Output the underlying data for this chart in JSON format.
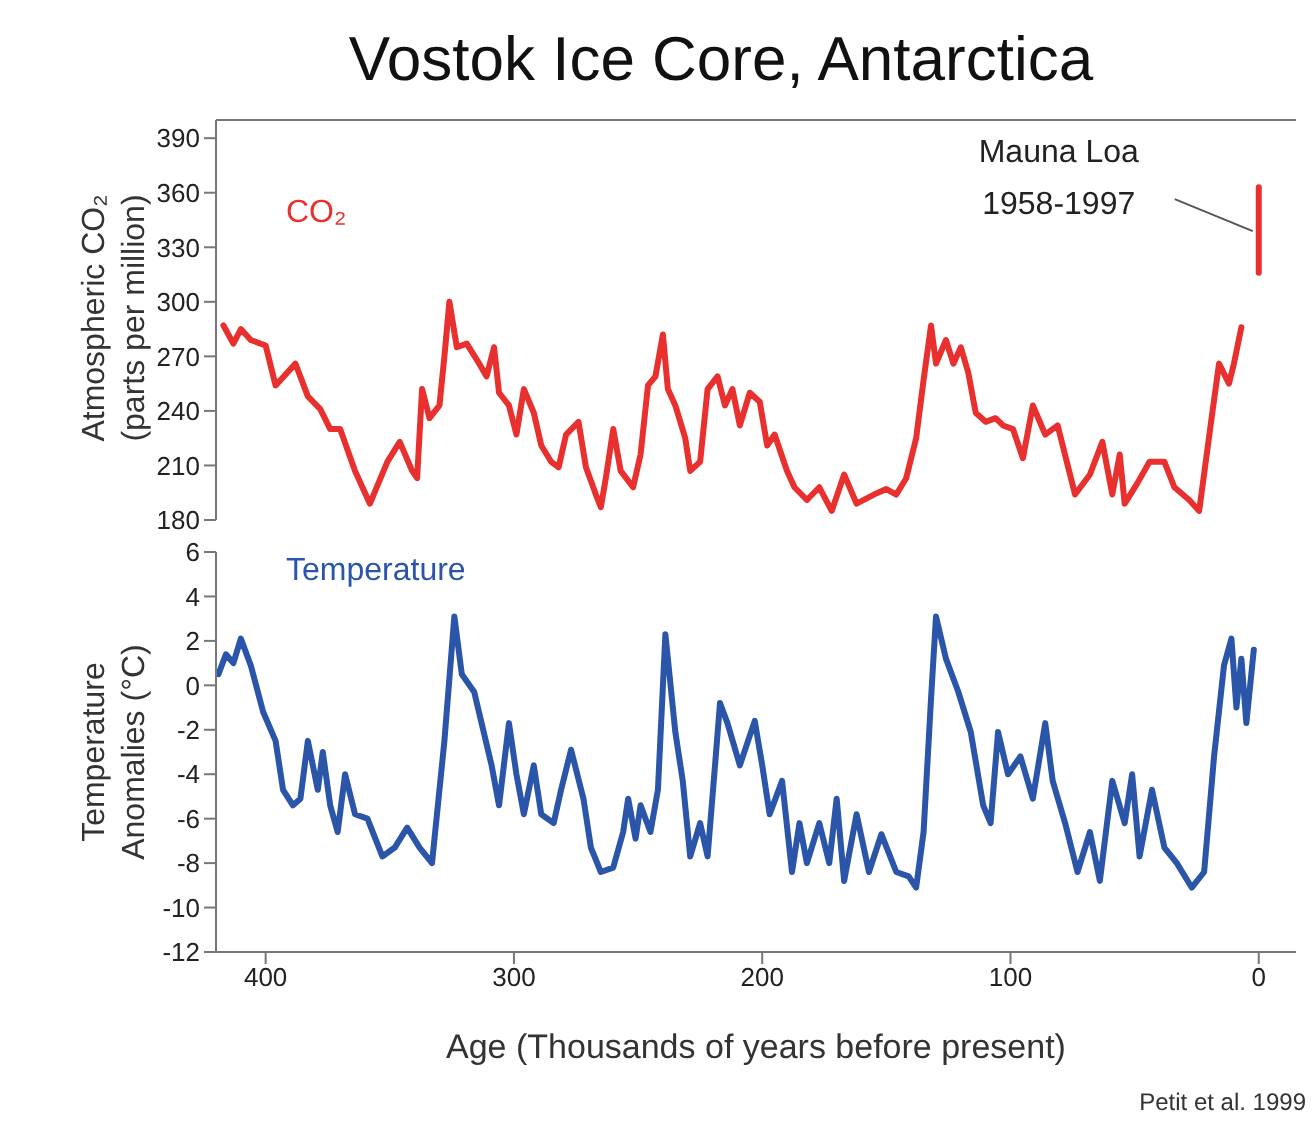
{
  "chart_data": [
    {
      "type": "line",
      "title": "Vostok Ice Core, Antarctica",
      "ylabel": "Atmospheric CO₂ (parts per million)",
      "tick_labels": "y",
      "xlim": [
        420,
        -15
      ],
      "ylim": [
        180,
        400
      ],
      "yticks": [
        180,
        210,
        240,
        270,
        300,
        330,
        360,
        390
      ],
      "series": [
        {
          "name": "CO₂",
          "color": "#e8312f",
          "x": [
            417,
            413,
            410,
            406,
            400,
            396,
            388,
            383,
            378,
            374,
            370,
            364,
            358,
            351,
            346,
            341,
            339,
            337,
            334,
            330,
            328,
            326,
            323,
            319,
            314,
            311,
            308,
            306,
            302,
            299,
            296,
            292,
            289,
            285,
            282,
            279,
            274,
            271,
            267,
            265,
            263,
            260,
            257,
            252,
            249,
            246,
            243,
            240,
            238,
            235,
            231,
            229,
            225,
            222,
            218,
            215,
            212,
            209,
            205,
            201,
            198,
            195,
            190,
            187,
            182,
            177,
            172,
            167,
            162,
            155,
            150,
            146,
            142,
            138,
            135,
            132,
            130,
            126,
            123,
            120,
            117,
            114,
            110,
            106,
            103,
            99,
            95,
            91,
            86,
            81,
            74,
            68,
            63,
            59,
            56,
            54,
            49,
            44,
            38,
            34,
            28,
            24,
            19,
            16,
            12,
            10,
            7
          ],
          "values": [
            287,
            277,
            285,
            279,
            276,
            254,
            266,
            248,
            241,
            230,
            230,
            207,
            189,
            212,
            223,
            207,
            203,
            252,
            236,
            243,
            270,
            300,
            275,
            277,
            266,
            259,
            275,
            250,
            243,
            227,
            252,
            239,
            221,
            212,
            209,
            227,
            234,
            209,
            194,
            187,
            203,
            230,
            207,
            198,
            216,
            254,
            259,
            282,
            252,
            243,
            225,
            207,
            212,
            252,
            259,
            243,
            252,
            232,
            250,
            245,
            221,
            227,
            207,
            198,
            191,
            198,
            185,
            205,
            189,
            194,
            197,
            194,
            203,
            225,
            257,
            287,
            266,
            279,
            266,
            275,
            261,
            239,
            234,
            236,
            232,
            230,
            214,
            243,
            227,
            232,
            194,
            205,
            223,
            194,
            216,
            189,
            200,
            212,
            212,
            198,
            191,
            185,
            236,
            266,
            255,
            266,
            286
          ]
        },
        {
          "color": "#e8312f",
          "x": [
            0,
            0
          ],
          "values": [
            316,
            363
          ]
        }
      ],
      "annotations": [
        {
          "text": "Mauna Loa 1958-1997",
          "x": 0,
          "y": 340
        }
      ]
    },
    {
      "type": "line",
      "xlabel": "Age (Thousands of years before present)",
      "ylabel": "Temperature Anomalies (°C)",
      "xlim": [
        420,
        -15
      ],
      "xticks": [
        400,
        300,
        200,
        100,
        0
      ],
      "ylim": [
        -12,
        6
      ],
      "yticks": [
        -12,
        -10,
        -8,
        -6,
        -4,
        -2,
        0,
        2,
        4,
        6
      ],
      "series": [
        {
          "name": "Temperature",
          "color": "#2a55a8",
          "x": [
            419,
            416,
            413,
            410,
            406,
            401,
            396,
            393,
            389,
            386,
            383,
            379,
            377,
            374,
            371,
            368,
            364,
            359,
            353,
            348,
            343,
            338,
            333,
            328,
            324,
            321,
            316,
            309,
            306,
            302,
            299,
            296,
            292,
            289,
            284,
            281,
            277,
            272,
            269,
            265,
            260,
            256,
            254,
            251,
            249,
            245,
            242,
            239,
            235,
            232,
            229,
            225,
            222,
            219,
            217,
            214,
            209,
            203,
            200,
            197,
            192,
            188,
            185,
            182,
            177,
            173,
            170,
            167,
            162,
            157,
            152,
            146,
            141,
            138,
            135,
            132,
            130,
            126,
            121,
            116,
            111,
            108,
            105,
            101,
            96,
            91,
            86,
            83,
            78,
            73,
            68,
            64,
            59,
            54,
            51,
            48,
            43,
            38,
            33,
            27,
            22,
            18,
            14,
            11,
            9,
            7,
            5,
            2
          ],
          "values": [
            0.5,
            1.4,
            1.0,
            2.1,
            0.9,
            -1.2,
            -2.5,
            -4.7,
            -5.4,
            -5.1,
            -2.5,
            -4.7,
            -3.0,
            -5.4,
            -6.6,
            -4.0,
            -5.8,
            -6.0,
            -7.7,
            -7.3,
            -6.4,
            -7.3,
            -8.0,
            -2.5,
            3.1,
            0.5,
            -0.3,
            -3.6,
            -5.4,
            -1.7,
            -4.0,
            -5.8,
            -3.6,
            -5.8,
            -6.2,
            -4.7,
            -2.9,
            -5.1,
            -7.3,
            -8.4,
            -8.2,
            -6.6,
            -5.1,
            -6.9,
            -5.4,
            -6.6,
            -4.7,
            2.3,
            -2.1,
            -4.3,
            -7.7,
            -6.2,
            -7.7,
            -3.6,
            -0.8,
            -1.7,
            -3.6,
            -1.6,
            -3.6,
            -5.8,
            -4.3,
            -8.4,
            -6.2,
            -8.0,
            -6.2,
            -8.0,
            -5.1,
            -8.8,
            -5.8,
            -8.4,
            -6.7,
            -8.4,
            -8.6,
            -9.1,
            -6.6,
            -0.6,
            3.1,
            1.2,
            -0.3,
            -2.1,
            -5.4,
            -6.2,
            -2.1,
            -4.0,
            -3.2,
            -5.1,
            -1.7,
            -4.3,
            -6.2,
            -8.4,
            -6.6,
            -8.8,
            -4.3,
            -6.2,
            -4.0,
            -7.7,
            -4.7,
            -7.3,
            -8.0,
            -9.1,
            -8.4,
            -3.2,
            0.9,
            2.1,
            -1.0,
            1.2,
            -1.7,
            1.6
          ]
        }
      ],
      "annotations": [
        "Petit et al. 1999"
      ]
    }
  ]
}
